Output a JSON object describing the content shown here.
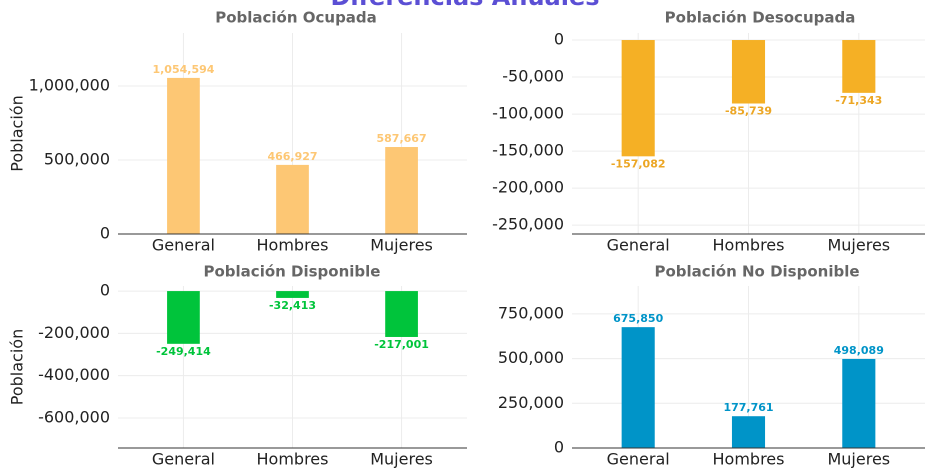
{
  "title": "Diferencias Anuales",
  "chart_data": [
    {
      "type": "bar",
      "title": "Población Ocupada",
      "y_label": "Población",
      "categories": [
        "General",
        "Hombres",
        "Mujeres"
      ],
      "values": [
        1054594,
        466927,
        587667
      ],
      "value_labels": [
        "1,054,594",
        "466,927",
        "587,667"
      ],
      "color": "#fdc774",
      "label_color": "#fdc774",
      "ylim": [
        0,
        1358000
      ],
      "yticks": [
        0,
        {
          "value": 500000,
          "label": "500,000"
        },
        {
          "value": 1000000,
          "label": "1,000,000"
        }
      ],
      "grid": true
    },
    {
      "type": "bar",
      "title": "Población Desocupada",
      "categories": [
        "General",
        "Hombres",
        "Mujeres"
      ],
      "values": [
        -157082,
        -85739,
        -71343
      ],
      "value_labels": [
        "-157,082",
        "-85,739",
        "-71,343"
      ],
      "color": "#f5b025",
      "label_color": "#eca624",
      "ylim": [
        -262000,
        9500
      ],
      "yticks": [
        0,
        {
          "value": -50000,
          "label": "-50,000"
        },
        {
          "value": -100000,
          "label": "-100,000"
        },
        {
          "value": -150000,
          "label": "-150,000"
        },
        {
          "value": -200000,
          "label": "-200,000"
        },
        {
          "value": -250000,
          "label": "-250,000"
        }
      ],
      "grid": true
    },
    {
      "type": "bar",
      "title": "Población Disponible",
      "y_label": "Población",
      "categories": [
        "General",
        "Hombres",
        "Mujeres"
      ],
      "values": [
        -249414,
        -32413,
        -217001
      ],
      "value_labels": [
        "-249,414",
        "-32,413",
        "-217,001"
      ],
      "color": "#00c43b",
      "label_color": "#00c43b",
      "ylim": [
        -742000,
        24000
      ],
      "yticks": [
        0,
        {
          "value": -200000,
          "label": "-200,000"
        },
        {
          "value": -400000,
          "label": "-400,000"
        },
        {
          "value": -600000,
          "label": "-600,000"
        }
      ],
      "grid": true
    },
    {
      "type": "bar",
      "title": "Población No Disponible",
      "categories": [
        "General",
        "Hombres",
        "Mujeres"
      ],
      "values": [
        675850,
        177761,
        498089
      ],
      "value_labels": [
        "675,850",
        "177,761",
        "498,089"
      ],
      "color": "#0094c8",
      "label_color": "#0094c8",
      "ylim": [
        0,
        906000
      ],
      "yticks": [
        0,
        {
          "value": 250000,
          "label": "250,000"
        },
        {
          "value": 500000,
          "label": "500,000"
        },
        {
          "value": 750000,
          "label": "750,000"
        }
      ],
      "grid": true
    }
  ]
}
